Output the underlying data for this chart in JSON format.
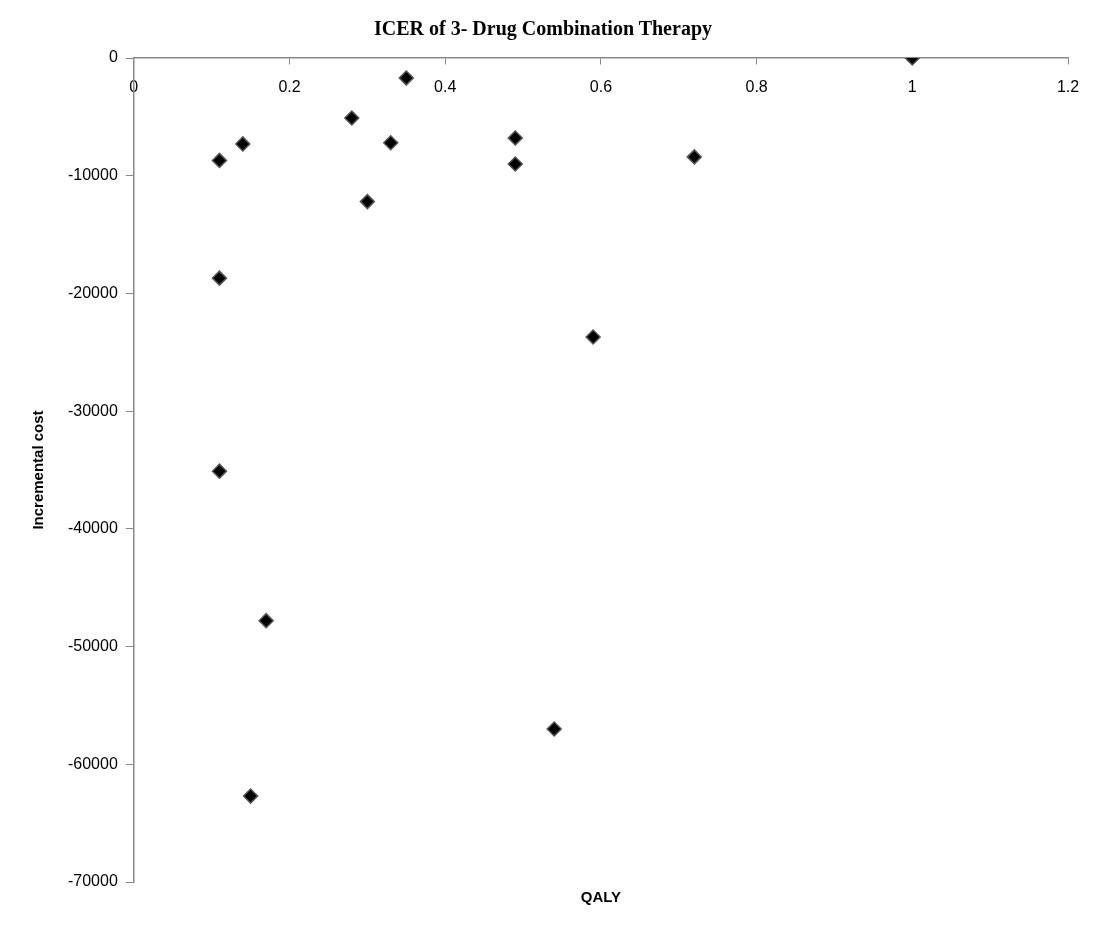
{
  "chart_data": {
    "type": "scatter",
    "title": "ICER of 3- Drug Combination Therapy",
    "xlabel": "QALY",
    "ylabel": "Incremental cost",
    "x": [
      0.11,
      0.14,
      0.28,
      0.35,
      0.33,
      0.3,
      0.49,
      0.49,
      0.72,
      1,
      0.11,
      0.59,
      0.11,
      0.17,
      0.54,
      0.15
    ],
    "series": [
      {
        "color": "#000000",
        "values": [
          -8700,
          -7300,
          -5100,
          -1700,
          -7200,
          -12200,
          -6800,
          -9000,
          -8400,
          0,
          -18700,
          -23700,
          -35100,
          -47800,
          -57000,
          -62700
        ]
      }
    ],
    "xlim": [
      0,
      1.2
    ],
    "xticks": [
      0,
      0.2,
      0.4,
      0.6,
      0.8,
      1,
      1.2
    ],
    "ylim": [
      -70000,
      0
    ],
    "yticks": [
      -70000,
      -60000,
      -50000,
      -40000,
      -30000,
      -20000,
      -10000,
      0
    ],
    "grid": false,
    "legend": false,
    "marker": "diamond"
  }
}
